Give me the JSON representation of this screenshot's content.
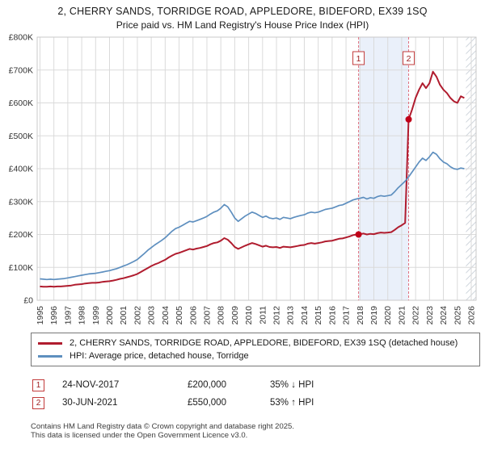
{
  "header": {
    "title": "2, CHERRY SANDS, TORRIDGE ROAD, APPLEDORE, BIDEFORD, EX39 1SQ",
    "subtitle": "Price paid vs. HM Land Registry's House Price Index (HPI)"
  },
  "chart_data": {
    "type": "line",
    "title": "Price paid vs. HM Land Registry's House Price Index (HPI)",
    "xlabel": "",
    "ylabel": "",
    "values_unit": "£1000s",
    "xlim": [
      1994.8,
      2026.35
    ],
    "ylim": [
      0,
      800
    ],
    "grid": true,
    "legend_position": "bottom",
    "x_ticks": [
      1995,
      1996,
      1997,
      1998,
      1999,
      2000,
      2001,
      2002,
      2003,
      2004,
      2005,
      2006,
      2007,
      2008,
      2009,
      2010,
      2011,
      2012,
      2013,
      2014,
      2015,
      2016,
      2017,
      2018,
      2019,
      2020,
      2021,
      2022,
      2023,
      2024,
      2025,
      2026
    ],
    "y_ticks": [
      {
        "v": 0,
        "label": "£0"
      },
      {
        "v": 100,
        "label": "£100K"
      },
      {
        "v": 200,
        "label": "£200K"
      },
      {
        "v": 300,
        "label": "£300K"
      },
      {
        "v": 400,
        "label": "£400K"
      },
      {
        "v": 500,
        "label": "£500K"
      },
      {
        "v": 600,
        "label": "£600K"
      },
      {
        "v": 700,
        "label": "£700K"
      },
      {
        "v": 800,
        "label": "£800K"
      }
    ],
    "x_start": 1995,
    "x_step": 0.25,
    "series": [
      {
        "id": "property-price-line",
        "name": "2, CHERRY SANDS, TORRIDGE ROAD, APPLEDORE, BIDEFORD, EX39 1SQ (detached house)",
        "color": "#b01c2e",
        "width": 2,
        "values": [
          42,
          41,
          41,
          42,
          41,
          42,
          42,
          43,
          44,
          45,
          47,
          48,
          49,
          51,
          52,
          53,
          53,
          54,
          56,
          57,
          58,
          60,
          62,
          65,
          67,
          70,
          73,
          76,
          80,
          86,
          92,
          98,
          104,
          109,
          113,
          118,
          123,
          130,
          136,
          141,
          144,
          148,
          152,
          156,
          154,
          157,
          159,
          162,
          165,
          170,
          174,
          176,
          181,
          189,
          184,
          174,
          162,
          156,
          161,
          166,
          170,
          174,
          171,
          167,
          163,
          166,
          162,
          161,
          162,
          159,
          163,
          162,
          161,
          163,
          165,
          167,
          168,
          172,
          174,
          172,
          174,
          176,
          179,
          180,
          181,
          184,
          187,
          188,
          191,
          194,
          198,
          200,
          201,
          203,
          200,
          202,
          201,
          204,
          206,
          205,
          206,
          207,
          214,
          222,
          228,
          235,
          550,
          580,
          615,
          640,
          660,
          645,
          660,
          695,
          680,
          655,
          640,
          630,
          615,
          605,
          600,
          620,
          615
        ]
      },
      {
        "id": "hpi-line",
        "name": "HPI: Average price, detached house, Torridge",
        "color": "#5e8fbf",
        "width": 1.7,
        "values": [
          65,
          64,
          63,
          64,
          63,
          64,
          65,
          66,
          68,
          70,
          72,
          74,
          76,
          78,
          80,
          81,
          82,
          84,
          86,
          88,
          90,
          93,
          96,
          100,
          104,
          108,
          113,
          118,
          124,
          133,
          142,
          152,
          160,
          168,
          175,
          182,
          190,
          200,
          210,
          218,
          222,
          228,
          234,
          240,
          238,
          242,
          246,
          250,
          255,
          262,
          268,
          272,
          280,
          291,
          284,
          268,
          250,
          240,
          248,
          256,
          262,
          268,
          264,
          258,
          252,
          256,
          250,
          248,
          250,
          246,
          252,
          250,
          248,
          252,
          255,
          258,
          260,
          265,
          268,
          266,
          268,
          272,
          276,
          278,
          280,
          284,
          288,
          290,
          295,
          300,
          305,
          308,
          310,
          313,
          308,
          312,
          310,
          315,
          318,
          316,
          318,
          320,
          330,
          342,
          352,
          362,
          375,
          390,
          405,
          420,
          432,
          425,
          436,
          450,
          444,
          430,
          420,
          415,
          406,
          400,
          398,
          402,
          400
        ]
      }
    ],
    "sales": [
      {
        "label": "1",
        "x": 2017.9,
        "value": 200,
        "date": "24-NOV-2017",
        "price_display": "£200,000"
      },
      {
        "label": "2",
        "x": 2021.5,
        "value": 550,
        "date": "30-JUN-2021",
        "price_display": "£550,000"
      }
    ],
    "shaded_region": [
      2017.9,
      2021.5
    ],
    "hatched_region": [
      2025.62,
      2026.35
    ],
    "colors": {
      "band": "#eaf0fa",
      "dashed_line": "#e07080",
      "grid": "#dadada",
      "border": "#c9c9c9",
      "hatch": "#c4cbd4",
      "sale_marker": "#c00018",
      "flag_border": "#c23b3b",
      "flag_text": "#9b1c1c",
      "axis_text": "#333333"
    }
  },
  "legend": {
    "items": [
      {
        "label": "2, CHERRY SANDS, TORRIDGE ROAD, APPLEDORE, BIDEFORD, EX39 1SQ (detached house)",
        "color": "#b01c2e"
      },
      {
        "label": "HPI: Average price, detached house, Torridge",
        "color": "#5e8fbf"
      }
    ]
  },
  "transactions": [
    {
      "num": "1",
      "date": "24-NOV-2017",
      "price": "£200,000",
      "vs_hpi": "35% ↓ HPI"
    },
    {
      "num": "2",
      "date": "30-JUN-2021",
      "price": "£550,000",
      "vs_hpi": "53% ↑ HPI"
    }
  ],
  "footer": {
    "line1": "Contains HM Land Registry data © Crown copyright and database right 2025.",
    "line2": "This data is licensed under the Open Government Licence v3.0."
  }
}
